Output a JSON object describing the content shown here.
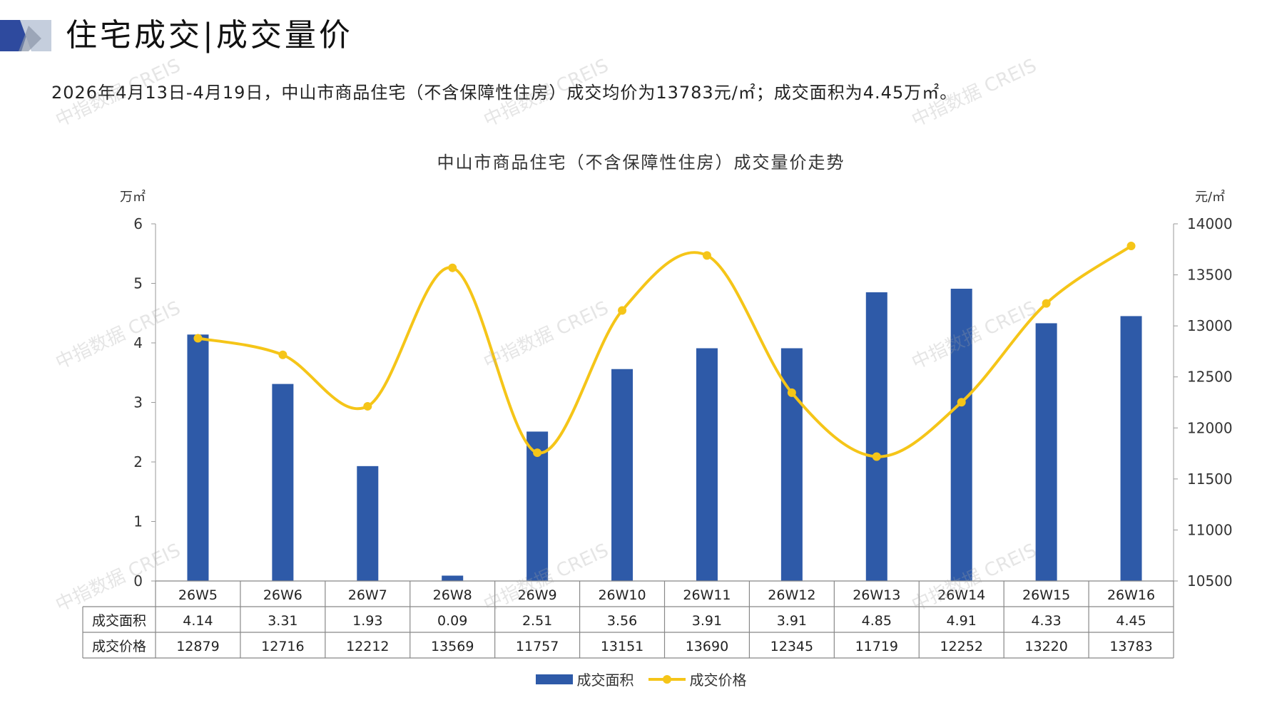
{
  "header": {
    "title": "住宅成交|成交量价",
    "summary": "2026年4月13日-4月19日，中山市商品住宅（不含保障性住房）成交均价为13783元/㎡；成交面积为4.45万㎡。"
  },
  "watermark_text": "中指数据 CREIS",
  "colors": {
    "bar": "#2e5aa8",
    "line": "#f5c518",
    "axis": "#999999",
    "brand_dark": "#2e4a9e",
    "brand_light": "#b8c4d8"
  },
  "chart_data": {
    "type": "bar",
    "title": "中山市商品住宅（不含保障性住房）成交量价走势",
    "categories": [
      "26W5",
      "26W6",
      "26W7",
      "26W8",
      "26W9",
      "26W10",
      "26W11",
      "26W12",
      "26W13",
      "26W14",
      "26W15",
      "26W16"
    ],
    "series": [
      {
        "name": "成交面积",
        "type": "bar",
        "axis": "left",
        "values": [
          4.14,
          3.31,
          1.93,
          0.09,
          2.51,
          3.56,
          3.91,
          3.91,
          4.85,
          4.91,
          4.33,
          4.45
        ]
      },
      {
        "name": "成交价格",
        "type": "line",
        "axis": "right",
        "values": [
          12879,
          12716,
          12212,
          13569,
          11757,
          13151,
          13690,
          12345,
          11719,
          12252,
          13220,
          13783
        ]
      }
    ],
    "y_left": {
      "unit": "万㎡",
      "ylim": [
        0,
        6
      ],
      "ticks": [
        "0",
        "1",
        "2",
        "3",
        "4",
        "5",
        "6"
      ]
    },
    "y_right": {
      "unit": "元/㎡",
      "ylim": [
        10500,
        14000
      ],
      "ticks": [
        "10500",
        "11000",
        "11500",
        "12000",
        "12500",
        "13000",
        "13500",
        "14000"
      ]
    },
    "table": {
      "row_labels": [
        "成交面积",
        "成交价格"
      ],
      "rows": [
        [
          "4.14",
          "3.31",
          "1.93",
          "0.09",
          "2.51",
          "3.56",
          "3.91",
          "3.91",
          "4.85",
          "4.91",
          "4.33",
          "4.45"
        ],
        [
          "12879",
          "12716",
          "12212",
          "13569",
          "11757",
          "13151",
          "13690",
          "12345",
          "11719",
          "12252",
          "13220",
          "13783"
        ]
      ]
    },
    "legend": {
      "position": "bottom",
      "items": [
        "成交面积",
        "成交价格"
      ]
    },
    "grid": false
  }
}
